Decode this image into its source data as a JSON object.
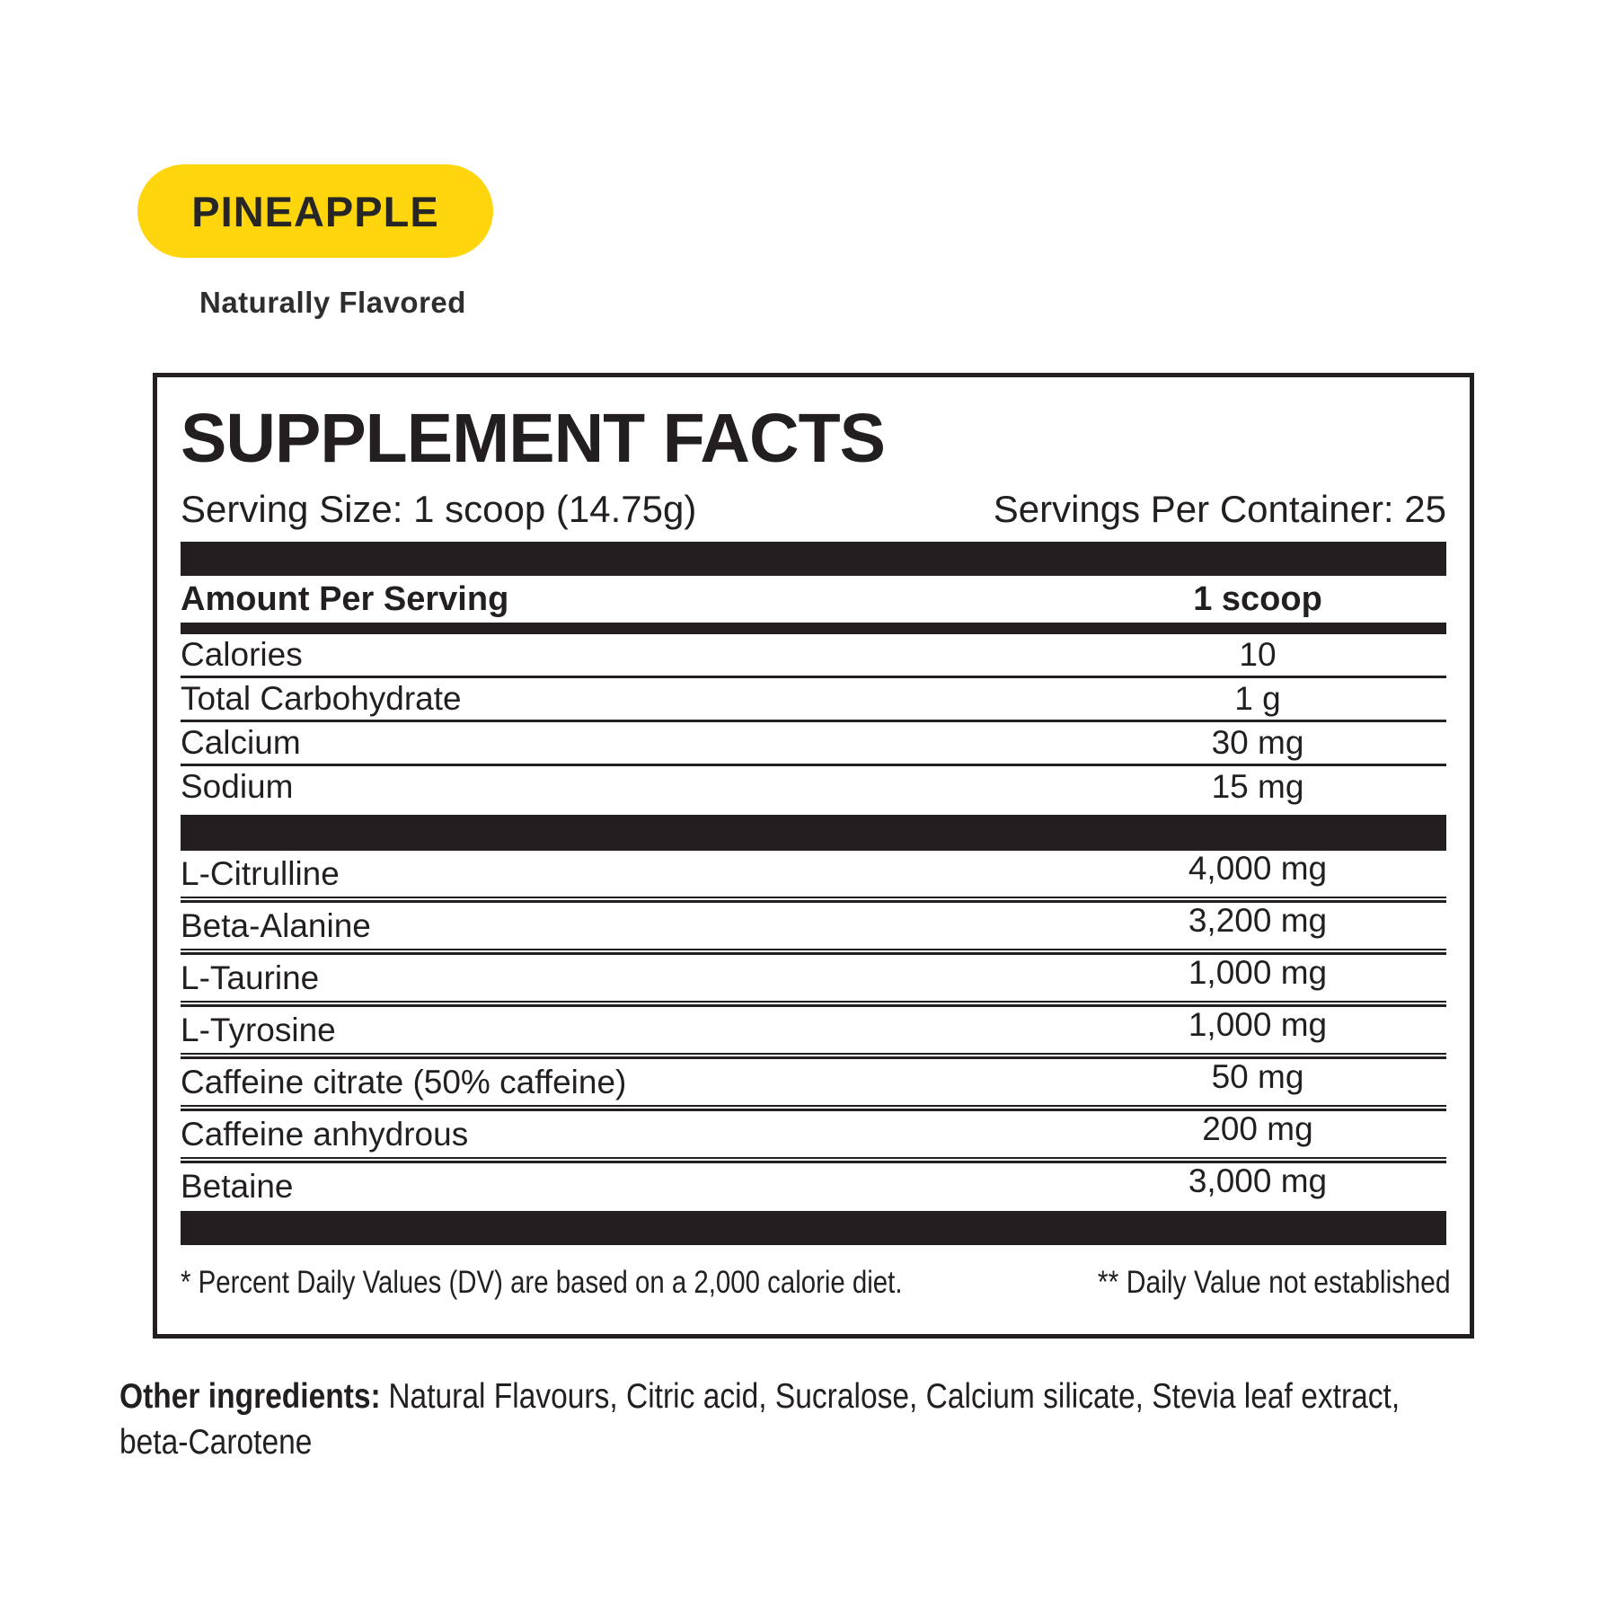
{
  "colors": {
    "accent_yellow": "#ffd60e",
    "ink": "#231f20"
  },
  "flavor": {
    "name": "PINEAPPLE",
    "subtitle": "Naturally Flavored"
  },
  "panel": {
    "title": "SUPPLEMENT FACTS",
    "serving_size": "Serving Size: 1 scoop (14.75g)",
    "servings_per_container": "Servings Per Container: 25",
    "columns": {
      "amount_per_serving": "Amount Per Serving",
      "serving_unit": "1 scoop"
    },
    "nutrients": [
      {
        "label": "Calories",
        "value": "10"
      },
      {
        "label": "Total Carbohydrate",
        "value": "1 g"
      },
      {
        "label": "Calcium",
        "value": "30 mg"
      },
      {
        "label": "Sodium",
        "value": "15 mg"
      }
    ],
    "actives": [
      {
        "label": "L-Citrulline",
        "value": "4,000 mg"
      },
      {
        "label": "Beta-Alanine",
        "value": "3,200 mg"
      },
      {
        "label": "L-Taurine",
        "value": "1,000 mg"
      },
      {
        "label": "L-Tyrosine",
        "value": "1,000 mg"
      },
      {
        "label": "Caffeine citrate (50% caffeine)",
        "value": "50 mg"
      },
      {
        "label": "Caffeine anhydrous",
        "value": "200 mg"
      },
      {
        "label": "Betaine",
        "value": "3,000 mg"
      }
    ],
    "footnotes": {
      "daily_value": "* Percent Daily Values (DV) are based on a 2,000 calorie diet.",
      "not_established": "** Daily Value not established"
    }
  },
  "other_ingredients": {
    "label": "Other ingredients:",
    "line1": "Natural Flavours, Citric acid, Sucralose, Calcium silicate, Stevia leaf extract,",
    "line2": "beta-Carotene"
  }
}
